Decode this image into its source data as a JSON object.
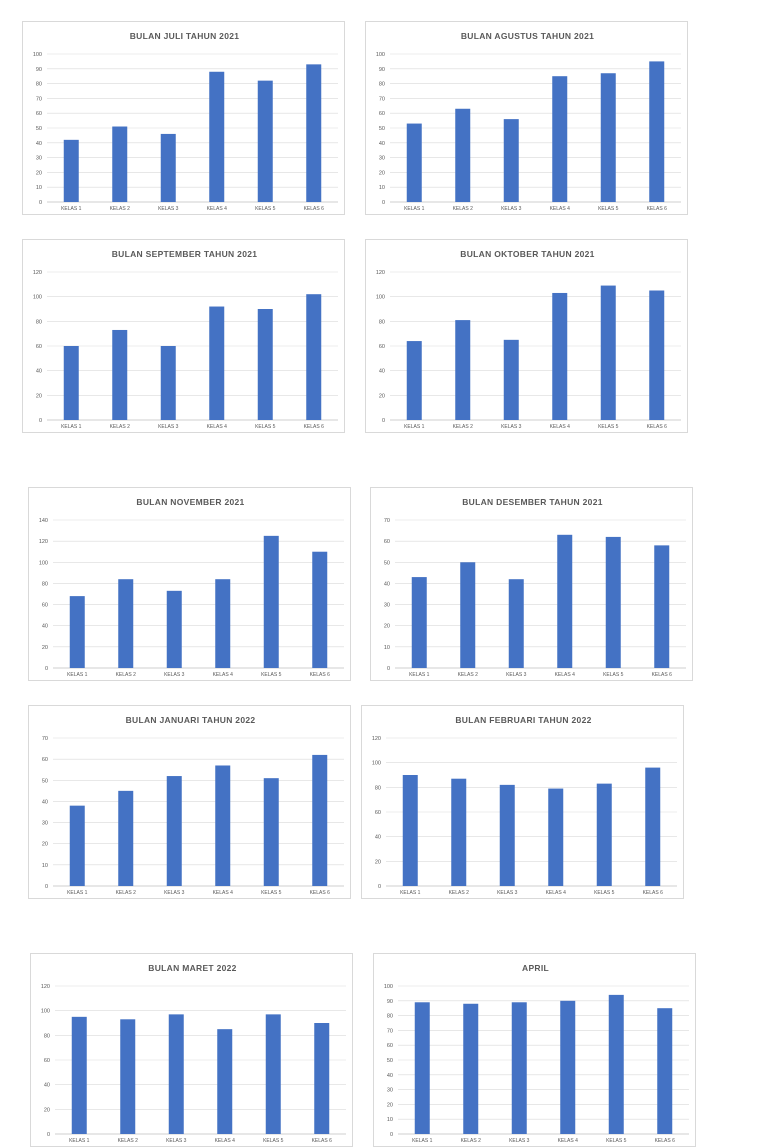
{
  "chart_data": [
    {
      "type": "bar",
      "title": "BULAN JULI TAHUN 2021",
      "categories": [
        "KELAS 1",
        "KELAS 2",
        "KELAS 3",
        "KELAS 4",
        "KELAS 5",
        "KELAS 6"
      ],
      "values": [
        42,
        51,
        46,
        88,
        82,
        93
      ],
      "ylim": [
        0,
        100
      ],
      "yticks": [
        0,
        10,
        20,
        30,
        40,
        50,
        60,
        70,
        80,
        90,
        100
      ],
      "bar_color": "#4472c4",
      "grid": true
    },
    {
      "type": "bar",
      "title": "BULAN AGUSTUS TAHUN 2021",
      "categories": [
        "KELAS 1",
        "KELAS 2",
        "KELAS 3",
        "KELAS 4",
        "KELAS 5",
        "KELAS 6"
      ],
      "values": [
        53,
        63,
        56,
        85,
        87,
        95
      ],
      "ylim": [
        0,
        100
      ],
      "yticks": [
        0,
        10,
        20,
        30,
        40,
        50,
        60,
        70,
        80,
        90,
        100
      ],
      "bar_color": "#4472c4",
      "grid": true
    },
    {
      "type": "bar",
      "title": "BULAN SEPTEMBER TAHUN 2021",
      "categories": [
        "KELAS 1",
        "KELAS 2",
        "KELAS 3",
        "KELAS 4",
        "KELAS 5",
        "KELAS 6"
      ],
      "values": [
        60,
        73,
        60,
        92,
        90,
        102
      ],
      "ylim": [
        0,
        120
      ],
      "yticks": [
        0,
        20,
        40,
        60,
        80,
        100,
        120
      ],
      "bar_color": "#4472c4",
      "grid": true
    },
    {
      "type": "bar",
      "title": "BULAN OKTOBER TAHUN 2021",
      "categories": [
        "KELAS 1",
        "KELAS 2",
        "KELAS 3",
        "KELAS 4",
        "KELAS 5",
        "KELAS 6"
      ],
      "values": [
        64,
        81,
        65,
        103,
        109,
        105
      ],
      "ylim": [
        0,
        120
      ],
      "yticks": [
        0,
        20,
        40,
        60,
        80,
        100,
        120
      ],
      "bar_color": "#4472c4",
      "grid": true
    },
    {
      "type": "bar",
      "title": "BULAN NOVEMBER 2021",
      "categories": [
        "KELAS 1",
        "KELAS 2",
        "KELAS 3",
        "KELAS 4",
        "KELAS 5",
        "KELAS 6"
      ],
      "values": [
        68,
        84,
        73,
        84,
        125,
        110
      ],
      "ylim": [
        0,
        140
      ],
      "yticks": [
        0,
        20,
        40,
        60,
        80,
        100,
        120,
        140
      ],
      "bar_color": "#4472c4",
      "grid": true
    },
    {
      "type": "bar",
      "title": "BULAN DESEMBER TAHUN 2021",
      "categories": [
        "KELAS 1",
        "KELAS 2",
        "KELAS 3",
        "KELAS 4",
        "KELAS 5",
        "KELAS 6"
      ],
      "values": [
        43,
        50,
        42,
        63,
        62,
        58
      ],
      "ylim": [
        0,
        70
      ],
      "yticks": [
        0,
        10,
        20,
        30,
        40,
        50,
        60,
        70
      ],
      "bar_color": "#4472c4",
      "grid": true
    },
    {
      "type": "bar",
      "title": "BULAN JANUARI TAHUN 2022",
      "categories": [
        "KELAS 1",
        "KELAS 2",
        "KELAS 3",
        "KELAS 4",
        "KELAS 5",
        "KELAS 6"
      ],
      "values": [
        38,
        45,
        52,
        57,
        51,
        62
      ],
      "ylim": [
        0,
        70
      ],
      "yticks": [
        0,
        10,
        20,
        30,
        40,
        50,
        60,
        70
      ],
      "bar_color": "#4472c4",
      "grid": true
    },
    {
      "type": "bar",
      "title": "BULAN FEBRUARI TAHUN 2022",
      "categories": [
        "KELAS 1",
        "KELAS 2",
        "KELAS 3",
        "KELAS 4",
        "KELAS 5",
        "KELAS 6"
      ],
      "values": [
        90,
        87,
        82,
        79,
        83,
        96
      ],
      "ylim": [
        0,
        120
      ],
      "yticks": [
        0,
        20,
        40,
        60,
        80,
        100,
        120
      ],
      "bar_color": "#4472c4",
      "grid": true
    },
    {
      "type": "bar",
      "title": "BULAN MARET 2022",
      "categories": [
        "KELAS 1",
        "KELAS 2",
        "KELAS 3",
        "KELAS 4",
        "KELAS 5",
        "KELAS 6"
      ],
      "values": [
        95,
        93,
        97,
        85,
        97,
        90
      ],
      "ylim": [
        0,
        120
      ],
      "yticks": [
        0,
        20,
        40,
        60,
        80,
        100,
        120
      ],
      "bar_color": "#4472c4",
      "grid": true
    },
    {
      "type": "bar",
      "title": "APRIL",
      "categories": [
        "KELAS 1",
        "KELAS 2",
        "KELAS 3",
        "KELAS 4",
        "KELAS 5",
        "KELAS 6"
      ],
      "values": [
        89,
        88,
        89,
        90,
        94,
        85
      ],
      "ylim": [
        0,
        100
      ],
      "yticks": [
        0,
        10,
        20,
        30,
        40,
        50,
        60,
        70,
        80,
        90,
        100
      ],
      "bar_color": "#4472c4",
      "grid": true
    }
  ]
}
